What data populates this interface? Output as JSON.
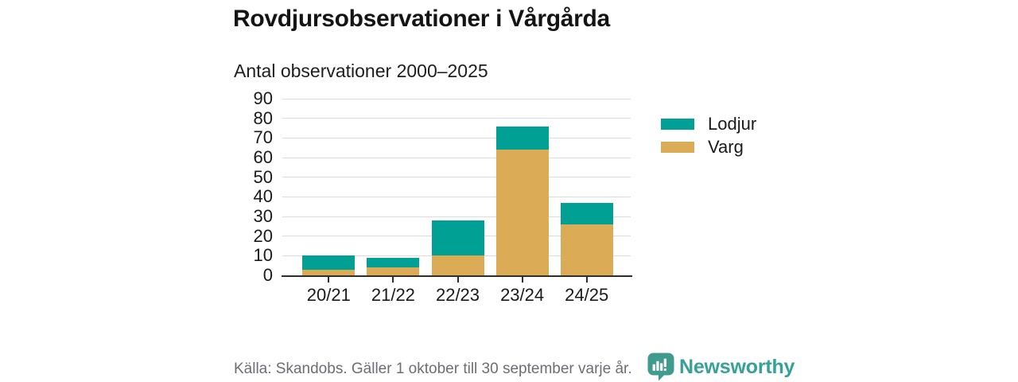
{
  "header": {
    "title": "Rovdjursobservationer i Vårgårda",
    "subtitle": "Antal observationer 2000–2025"
  },
  "chart_data": {
    "type": "bar",
    "stacked": true,
    "title": "Rovdjursobservationer i Vårgårda",
    "subtitle": "Antal observationer 2000–2025",
    "xlabel": "",
    "ylabel": "",
    "categories": [
      "20/21",
      "21/22",
      "22/23",
      "23/24",
      "24/25"
    ],
    "series": [
      {
        "name": "Lodjur",
        "color": "#00a094",
        "values": [
          7,
          5,
          18,
          12,
          11
        ]
      },
      {
        "name": "Varg",
        "color": "#dbac55",
        "values": [
          3,
          4,
          10,
          64,
          26
        ]
      }
    ],
    "stack_bottom_to_top": [
      "Varg",
      "Lodjur"
    ],
    "totals": [
      10,
      9,
      28,
      76,
      37
    ],
    "ylim": [
      0,
      90
    ],
    "yticks": [
      0,
      10,
      20,
      30,
      40,
      50,
      60,
      70,
      80,
      90
    ],
    "grid": true,
    "legend_position": "right"
  },
  "legend": {
    "items": [
      {
        "label": "Lodjur",
        "color": "#00a094"
      },
      {
        "label": "Varg",
        "color": "#dbac55"
      }
    ]
  },
  "footer": {
    "source": "Källa: Skandobs. Gäller 1 oktober till 30 september varje år.",
    "brand": "Newsworthy",
    "brand_color": "#35a197"
  },
  "colors": {
    "lodjur_teal": "#00a094",
    "varg_tan": "#dbac55",
    "gridline": "#dcdcdc",
    "axis": "#2e2e2e",
    "footer_gray": "#6b6e74"
  },
  "icons": {
    "brand_logo": "newsworthy-speech-bubble-bar-chart-icon"
  }
}
